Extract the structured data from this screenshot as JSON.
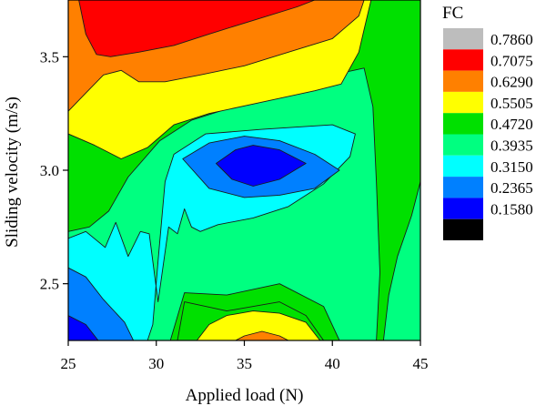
{
  "chart_data": {
    "type": "contour",
    "xlabel": "Applied load (N)",
    "ylabel": "Sliding velocity (m/s)",
    "xlim": [
      25,
      45
    ],
    "ylim": [
      2.25,
      3.75
    ],
    "xticks": [
      "25",
      "30",
      "35",
      "40",
      "45"
    ],
    "xtick_values": [
      25,
      30,
      35,
      40,
      45
    ],
    "yticks": [
      "2.5",
      "3.0",
      "3.5"
    ],
    "ytick_values": [
      2.5,
      3.0,
      3.5
    ],
    "legend": {
      "title": "FC",
      "placement": "right",
      "levels": [
        {
          "label": "0.7860",
          "color": "#bdbdbd"
        },
        {
          "label": "0.7075",
          "color": "#ff0000"
        },
        {
          "label": "0.6290",
          "color": "#ff8000"
        },
        {
          "label": "0.5505",
          "color": "#ffff00"
        },
        {
          "label": "0.4720",
          "color": "#00e000"
        },
        {
          "label": "0.3935",
          "color": "#00ff80"
        },
        {
          "label": "0.3150",
          "color": "#00ffff"
        },
        {
          "label": "0.2365",
          "color": "#0080ff"
        },
        {
          "label": "0.1580",
          "color": "#0000ff"
        },
        {
          "label": "",
          "color": "#000000"
        }
      ]
    },
    "regions": [
      {
        "level": "0.4720-0.5505",
        "color": "#00e000",
        "polygon": [
          [
            25,
            2.25
          ],
          [
            45,
            2.25
          ],
          [
            45,
            3.75
          ],
          [
            25,
            3.75
          ]
        ]
      },
      {
        "level": "0.3935-0.4720",
        "color": "#00ff80",
        "polygon": [
          [
            25,
            2.73
          ],
          [
            26.2,
            2.75
          ],
          [
            27.3,
            2.82
          ],
          [
            28.4,
            2.97
          ],
          [
            30.2,
            3.13
          ],
          [
            32,
            3.22
          ],
          [
            34,
            3.27
          ],
          [
            36,
            3.31
          ],
          [
            38,
            3.36
          ],
          [
            40,
            3.42
          ],
          [
            41.8,
            3.45
          ],
          [
            42.3,
            3.28
          ],
          [
            42.5,
            2.95
          ],
          [
            42.7,
            2.55
          ],
          [
            42.5,
            2.25
          ],
          [
            40.4,
            2.25
          ],
          [
            39.5,
            2.4
          ],
          [
            37,
            2.5
          ],
          [
            34,
            2.45
          ],
          [
            31.6,
            2.46
          ],
          [
            30.8,
            2.25
          ],
          [
            27.3,
            2.25
          ],
          [
            26.5,
            2.5
          ],
          [
            25,
            2.55
          ]
        ]
      },
      {
        "level": "0.4720-0.5505",
        "color": "#00e000",
        "polygon": [
          [
            31.6,
            2.42
          ],
          [
            34,
            2.38
          ],
          [
            37,
            2.42
          ],
          [
            38.5,
            2.36
          ],
          [
            39.5,
            2.25
          ],
          [
            31.2,
            2.25
          ]
        ]
      },
      {
        "level": "0.3150-0.3935",
        "color": "#00ffff",
        "polygon": [
          [
            25,
            2.7
          ],
          [
            26,
            2.73
          ],
          [
            27.1,
            2.66
          ],
          [
            27.7,
            2.77
          ],
          [
            28.4,
            2.62
          ],
          [
            29.1,
            2.73
          ],
          [
            29.6,
            2.72
          ],
          [
            30.1,
            2.42
          ],
          [
            30.7,
            2.75
          ],
          [
            31.2,
            2.72
          ],
          [
            31.6,
            2.83
          ],
          [
            32,
            2.75
          ],
          [
            32.5,
            2.73
          ],
          [
            33.5,
            2.76
          ],
          [
            35.5,
            2.79
          ],
          [
            37.5,
            2.84
          ],
          [
            39.5,
            2.94
          ],
          [
            41,
            3.06
          ],
          [
            41.3,
            3.16
          ],
          [
            40,
            3.2
          ],
          [
            36,
            3.18
          ],
          [
            32.8,
            3.16
          ],
          [
            31,
            3.07
          ],
          [
            30.5,
            2.95
          ],
          [
            30.1,
            2.6
          ],
          [
            29.8,
            2.32
          ],
          [
            29.5,
            2.25
          ],
          [
            25,
            2.25
          ]
        ]
      },
      {
        "level": "0.2365-0.3150",
        "color": "#0080ff",
        "polygon": [
          [
            25,
            2.57
          ],
          [
            26,
            2.53
          ],
          [
            27,
            2.43
          ],
          [
            28.2,
            2.33
          ],
          [
            28.7,
            2.25
          ],
          [
            25,
            2.25
          ]
        ]
      },
      {
        "level": "0.2365-0.3150",
        "color": "#0080ff",
        "polygon": [
          [
            31.5,
            3.05
          ],
          [
            33,
            3.12
          ],
          [
            35,
            3.15
          ],
          [
            37,
            3.13
          ],
          [
            39,
            3.07
          ],
          [
            40.4,
            3.0
          ],
          [
            39,
            2.92
          ],
          [
            37,
            2.89
          ],
          [
            35,
            2.88
          ],
          [
            33,
            2.92
          ]
        ]
      },
      {
        "level": "0.1580-0.2365",
        "color": "#0000ff",
        "polygon": [
          [
            33.4,
            3.03
          ],
          [
            34.5,
            3.09
          ],
          [
            35.5,
            3.11
          ],
          [
            37,
            3.09
          ],
          [
            38.5,
            3.03
          ],
          [
            37,
            2.96
          ],
          [
            35.5,
            2.93
          ],
          [
            34.3,
            2.96
          ]
        ]
      },
      {
        "level": "0.1580-0.2365",
        "color": "#0000ff",
        "polygon": [
          [
            25,
            2.36
          ],
          [
            26,
            2.32
          ],
          [
            26.7,
            2.25
          ],
          [
            25,
            2.25
          ]
        ]
      },
      {
        "level": "0.5505-0.6290",
        "color": "#ffff00",
        "polygon": [
          [
            25,
            3.16
          ],
          [
            26.5,
            3.11
          ],
          [
            28,
            3.05
          ],
          [
            29.5,
            3.1
          ],
          [
            31,
            3.2
          ],
          [
            33,
            3.25
          ],
          [
            36,
            3.3
          ],
          [
            39,
            3.35
          ],
          [
            40.5,
            3.38
          ],
          [
            41.5,
            3.52
          ],
          [
            41.8,
            3.62
          ],
          [
            42.2,
            3.75
          ],
          [
            25,
            3.75
          ]
        ]
      },
      {
        "level": "0.5505-0.6290",
        "color": "#ffff00",
        "polygon": [
          [
            32.3,
            2.25
          ],
          [
            33,
            2.32
          ],
          [
            34,
            2.36
          ],
          [
            35.5,
            2.38
          ],
          [
            37,
            2.37
          ],
          [
            38.5,
            2.33
          ],
          [
            39.3,
            2.25
          ]
        ]
      },
      {
        "level": "0.6290-0.7075",
        "color": "#ff8000",
        "polygon": [
          [
            25,
            3.26
          ],
          [
            26,
            3.34
          ],
          [
            27,
            3.42
          ],
          [
            28,
            3.44
          ],
          [
            29,
            3.39
          ],
          [
            30.5,
            3.39
          ],
          [
            32.5,
            3.42
          ],
          [
            35,
            3.46
          ],
          [
            37.5,
            3.52
          ],
          [
            40,
            3.58
          ],
          [
            41.5,
            3.68
          ],
          [
            41.8,
            3.75
          ],
          [
            25,
            3.75
          ]
        ]
      },
      {
        "level": "0.6290-0.7075",
        "color": "#ff8000",
        "polygon": [
          [
            34.5,
            2.25
          ],
          [
            35,
            2.27
          ],
          [
            36,
            2.29
          ],
          [
            37,
            2.27
          ],
          [
            37.5,
            2.25
          ]
        ]
      },
      {
        "level": "0.7075-0.7860",
        "color": "#ff0000",
        "polygon": [
          [
            25.6,
            3.75
          ],
          [
            26,
            3.6
          ],
          [
            26.6,
            3.51
          ],
          [
            27.4,
            3.5
          ],
          [
            29,
            3.52
          ],
          [
            31,
            3.55
          ],
          [
            33,
            3.6
          ],
          [
            35.5,
            3.66
          ],
          [
            38,
            3.72
          ],
          [
            39,
            3.75
          ]
        ]
      },
      {
        "level": "0.3935-0.4720",
        "color": "#00ff80",
        "polygon": [
          [
            42.9,
            2.25
          ],
          [
            43.2,
            2.45
          ],
          [
            43.7,
            2.62
          ],
          [
            44.5,
            2.8
          ],
          [
            45,
            2.95
          ],
          [
            45,
            2.25
          ]
        ]
      }
    ]
  }
}
